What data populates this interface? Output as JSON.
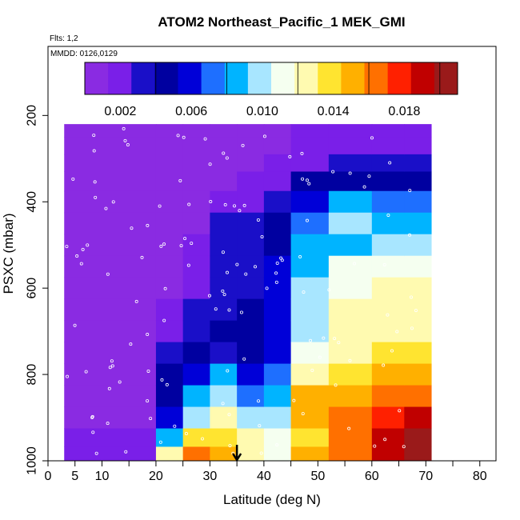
{
  "chart_data": {
    "type": "heatmap",
    "title": "ATOM2 Northeast_Pacific_1 MEK_GMI",
    "subtitle_flights": "Flts: 1,2",
    "subtitle_dates": "MMDD: 0126,0129",
    "xlabel": "Latitude (deg N)",
    "ylabel": "PSXC (mbar)",
    "xlim": [
      0,
      83
    ],
    "ylim": [
      1000,
      40
    ],
    "y_reversed": true,
    "x_ticks": [
      0,
      5,
      10,
      20,
      30,
      40,
      50,
      60,
      70,
      80
    ],
    "x_minor_ticks": [
      15,
      25,
      35,
      45,
      55,
      65,
      75
    ],
    "y_ticks": [
      200,
      400,
      600,
      800,
      1000
    ],
    "colorbar": {
      "min": 0,
      "max": 0.021,
      "ticks": [
        0.002,
        0.006,
        0.01,
        0.014,
        0.018
      ],
      "tick_labels": [
        "0.002",
        "0.006",
        "0.010",
        "0.014",
        "0.018"
      ],
      "divisions": [
        0,
        0.004,
        0.008,
        0.012,
        0.016,
        0.02
      ],
      "colors": [
        "#8a2be2",
        "#7a1fe8",
        "#1a0fc8",
        "#0000a0",
        "#0000d8",
        "#1e6fff",
        "#00b4ff",
        "#a8e6ff",
        "#f5fff0",
        "#fffab0",
        "#ffe430",
        "#ffb000",
        "#ff7000",
        "#ff2000",
        "#c00000",
        "#9a1a1a"
      ]
    },
    "marker": {
      "x": 35,
      "label": "arrow"
    },
    "pressure_levels": [
      230,
      270,
      310,
      350,
      400,
      450,
      500,
      550,
      600,
      650,
      700,
      750,
      800,
      850,
      900,
      950,
      985
    ],
    "lat_bands": [
      {
        "lat": [
          3,
          20
        ],
        "values": [
          0.0003,
          0.0003,
          0.0003,
          0.0003,
          0.0003,
          0.0003,
          0.0003,
          0.0003,
          0.0003,
          0.0003,
          0.0003,
          0.0003,
          0.0005,
          0.0008,
          0.0012,
          0.0018,
          0.0025
        ]
      },
      {
        "lat": [
          20,
          25
        ],
        "values": [
          0.0003,
          0.0003,
          0.0003,
          0.0003,
          0.0003,
          0.0003,
          0.0005,
          0.0008,
          0.0012,
          0.0018,
          0.0025,
          0.0035,
          0.004,
          0.0045,
          0.006,
          0.0085,
          0.012
        ]
      },
      {
        "lat": [
          25,
          30
        ],
        "values": [
          0.0003,
          0.0003,
          0.0003,
          0.0005,
          0.0008,
          0.001,
          0.0015,
          0.002,
          0.0025,
          0.003,
          0.0035,
          0.0045,
          0.006,
          0.008,
          0.01,
          0.014,
          0.017
        ]
      },
      {
        "lat": [
          30,
          35
        ],
        "values": [
          0.0003,
          0.0005,
          0.0008,
          0.0012,
          0.002,
          0.0028,
          0.0035,
          0.0032,
          0.003,
          0.0035,
          0.004,
          0.003,
          0.008,
          0.01,
          0.012,
          0.014,
          0.015
        ]
      },
      {
        "lat": [
          35,
          40
        ],
        "values": [
          0.0005,
          0.0008,
          0.0012,
          0.0018,
          0.0025,
          0.003,
          0.003,
          0.0032,
          0.0035,
          0.004,
          0.0045,
          0.004,
          0.006,
          0.007,
          0.01,
          0.012,
          0.013
        ]
      },
      {
        "lat": [
          40,
          45
        ],
        "values": [
          0.001,
          0.0012,
          0.0018,
          0.0025,
          0.0035,
          0.004,
          0.0045,
          0.0055,
          0.006,
          0.006,
          0.006,
          0.0055,
          0.007,
          0.009,
          0.01,
          0.011,
          0.011
        ]
      },
      {
        "lat": [
          45,
          52
        ],
        "values": [
          0.0015,
          0.002,
          0.0025,
          0.004,
          0.006,
          0.007,
          0.008,
          0.009,
          0.01,
          0.01,
          0.01,
          0.011,
          0.013,
          0.015,
          0.015,
          0.014,
          0.015
        ]
      },
      {
        "lat": [
          52,
          60
        ],
        "values": [
          0.002,
          0.0025,
          0.003,
          0.0045,
          0.008,
          0.01,
          0.009,
          0.011,
          0.011,
          0.012,
          0.012,
          0.013,
          0.014,
          0.015,
          0.016,
          0.017,
          0.017
        ]
      },
      {
        "lat": [
          60,
          66
        ],
        "values": [
          0.002,
          0.0025,
          0.0035,
          0.005,
          0.007,
          0.009,
          0.01,
          0.011,
          0.012,
          0.012,
          0.013,
          0.014,
          0.015,
          0.016,
          0.018,
          0.019,
          0.019
        ]
      },
      {
        "lat": [
          66,
          71
        ],
        "values": [
          0.002,
          0.0025,
          0.0035,
          0.005,
          0.007,
          0.009,
          0.01,
          0.011,
          0.012,
          0.012,
          0.013,
          0.014,
          0.0155,
          0.017,
          0.019,
          0.02,
          0.0205
        ]
      }
    ]
  }
}
